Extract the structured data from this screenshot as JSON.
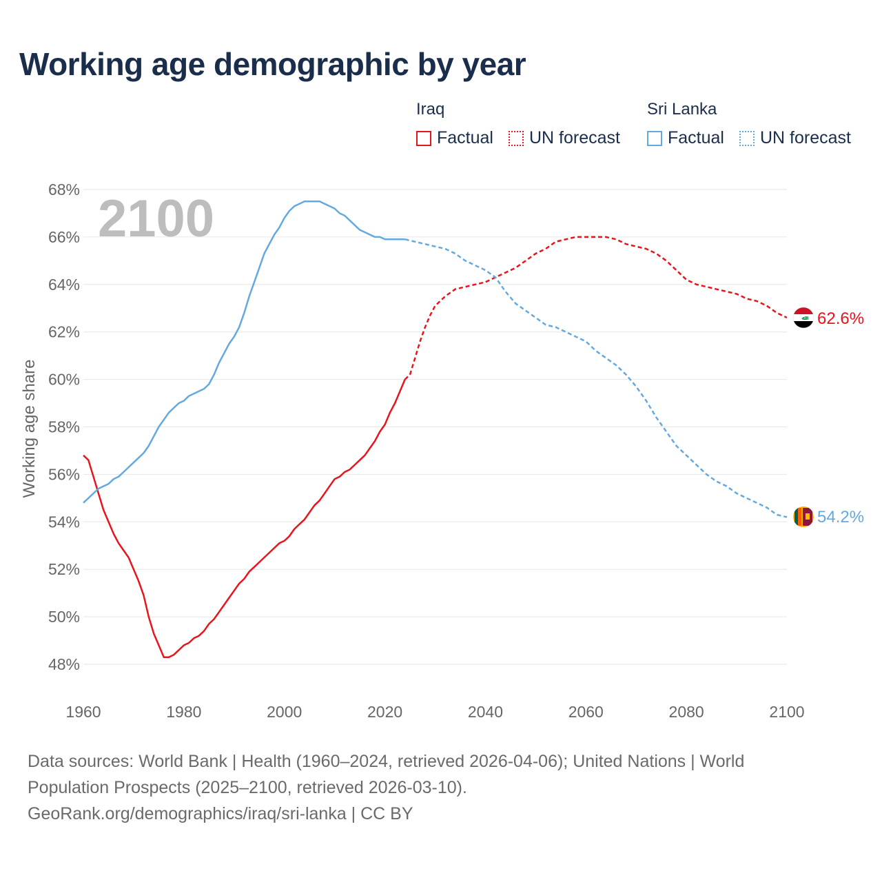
{
  "title": "Working age demographic by year",
  "legend": {
    "groups": [
      {
        "name": "Iraq",
        "factual_label": "Factual",
        "forecast_label": "UN forecast",
        "color": "#e8141b"
      },
      {
        "name": "Sri Lanka",
        "factual_label": "Factual",
        "forecast_label": "UN forecast",
        "color": "#64a8e0"
      }
    ]
  },
  "footer": {
    "line1": "Data sources: World Bank | Health (1960–2024, retrieved 2026-04-06); United Nations | World",
    "line2": "Population Prospects (2025–2100, retrieved 2026-03-10).",
    "line3": "GeoRank.org/demographics/iraq/sri-lanka | CC BY"
  },
  "chart_data": {
    "type": "line",
    "title": "Working age demographic by year",
    "ylabel": "Working age share",
    "xlabel": "",
    "year_overlay": "2100",
    "xlim": [
      1960,
      2100
    ],
    "ylim": [
      47.5,
      68
    ],
    "x_ticks": [
      "1960",
      "1980",
      "2000",
      "2020",
      "2040",
      "2060",
      "2080",
      "2100"
    ],
    "x_tick_values": [
      1960,
      1980,
      2000,
      2020,
      2040,
      2060,
      2080,
      2100
    ],
    "y_ticks": [
      "48%",
      "50%",
      "52%",
      "54%",
      "56%",
      "58%",
      "60%",
      "62%",
      "64%",
      "66%",
      "68%"
    ],
    "y_tick_values": [
      48,
      50,
      52,
      54,
      56,
      58,
      60,
      62,
      64,
      66,
      68
    ],
    "factual_end": 2024,
    "series": [
      {
        "name": "Iraq",
        "color": "#e8141b",
        "end_label": "62.6%",
        "points": [
          [
            1960,
            56.8
          ],
          [
            1961,
            56.6
          ],
          [
            1962,
            55.9
          ],
          [
            1963,
            55.2
          ],
          [
            1964,
            54.5
          ],
          [
            1965,
            54.0
          ],
          [
            1966,
            53.5
          ],
          [
            1967,
            53.1
          ],
          [
            1968,
            52.8
          ],
          [
            1969,
            52.5
          ],
          [
            1970,
            52.0
          ],
          [
            1971,
            51.5
          ],
          [
            1972,
            50.9
          ],
          [
            1973,
            50.0
          ],
          [
            1974,
            49.3
          ],
          [
            1975,
            48.8
          ],
          [
            1976,
            48.3
          ],
          [
            1977,
            48.3
          ],
          [
            1978,
            48.4
          ],
          [
            1979,
            48.6
          ],
          [
            1980,
            48.8
          ],
          [
            1981,
            48.9
          ],
          [
            1982,
            49.1
          ],
          [
            1983,
            49.2
          ],
          [
            1984,
            49.4
          ],
          [
            1985,
            49.7
          ],
          [
            1986,
            49.9
          ],
          [
            1987,
            50.2
          ],
          [
            1988,
            50.5
          ],
          [
            1989,
            50.8
          ],
          [
            1990,
            51.1
          ],
          [
            1991,
            51.4
          ],
          [
            1992,
            51.6
          ],
          [
            1993,
            51.9
          ],
          [
            1994,
            52.1
          ],
          [
            1995,
            52.3
          ],
          [
            1996,
            52.5
          ],
          [
            1997,
            52.7
          ],
          [
            1998,
            52.9
          ],
          [
            1999,
            53.1
          ],
          [
            2000,
            53.2
          ],
          [
            2001,
            53.4
          ],
          [
            2002,
            53.7
          ],
          [
            2003,
            53.9
          ],
          [
            2004,
            54.1
          ],
          [
            2005,
            54.4
          ],
          [
            2006,
            54.7
          ],
          [
            2007,
            54.9
          ],
          [
            2008,
            55.2
          ],
          [
            2009,
            55.5
          ],
          [
            2010,
            55.8
          ],
          [
            2011,
            55.9
          ],
          [
            2012,
            56.1
          ],
          [
            2013,
            56.2
          ],
          [
            2014,
            56.4
          ],
          [
            2015,
            56.6
          ],
          [
            2016,
            56.8
          ],
          [
            2017,
            57.1
          ],
          [
            2018,
            57.4
          ],
          [
            2019,
            57.8
          ],
          [
            2020,
            58.1
          ],
          [
            2021,
            58.6
          ],
          [
            2022,
            59.0
          ],
          [
            2023,
            59.5
          ],
          [
            2024,
            60.0
          ],
          [
            2025,
            60.2
          ],
          [
            2026,
            60.9
          ],
          [
            2027,
            61.6
          ],
          [
            2028,
            62.2
          ],
          [
            2029,
            62.7
          ],
          [
            2030,
            63.1
          ],
          [
            2032,
            63.5
          ],
          [
            2034,
            63.8
          ],
          [
            2036,
            63.9
          ],
          [
            2038,
            64.0
          ],
          [
            2040,
            64.1
          ],
          [
            2042,
            64.3
          ],
          [
            2044,
            64.5
          ],
          [
            2046,
            64.7
          ],
          [
            2048,
            65.0
          ],
          [
            2050,
            65.3
          ],
          [
            2052,
            65.5
          ],
          [
            2054,
            65.8
          ],
          [
            2056,
            65.9
          ],
          [
            2058,
            66.0
          ],
          [
            2060,
            66.0
          ],
          [
            2062,
            66.0
          ],
          [
            2064,
            66.0
          ],
          [
            2066,
            65.9
          ],
          [
            2068,
            65.7
          ],
          [
            2070,
            65.6
          ],
          [
            2072,
            65.5
          ],
          [
            2074,
            65.3
          ],
          [
            2076,
            65.0
          ],
          [
            2078,
            64.6
          ],
          [
            2080,
            64.2
          ],
          [
            2082,
            64.0
          ],
          [
            2084,
            63.9
          ],
          [
            2086,
            63.8
          ],
          [
            2088,
            63.7
          ],
          [
            2090,
            63.6
          ],
          [
            2092,
            63.4
          ],
          [
            2094,
            63.3
          ],
          [
            2096,
            63.1
          ],
          [
            2098,
            62.8
          ],
          [
            2100,
            62.6
          ]
        ]
      },
      {
        "name": "Sri Lanka",
        "color": "#64a8e0",
        "end_label": "54.2%",
        "points": [
          [
            1960,
            54.8
          ],
          [
            1961,
            55.0
          ],
          [
            1962,
            55.2
          ],
          [
            1963,
            55.4
          ],
          [
            1964,
            55.5
          ],
          [
            1965,
            55.6
          ],
          [
            1966,
            55.8
          ],
          [
            1967,
            55.9
          ],
          [
            1968,
            56.1
          ],
          [
            1969,
            56.3
          ],
          [
            1970,
            56.5
          ],
          [
            1971,
            56.7
          ],
          [
            1972,
            56.9
          ],
          [
            1973,
            57.2
          ],
          [
            1974,
            57.6
          ],
          [
            1975,
            58.0
          ],
          [
            1976,
            58.3
          ],
          [
            1977,
            58.6
          ],
          [
            1978,
            58.8
          ],
          [
            1979,
            59.0
          ],
          [
            1980,
            59.1
          ],
          [
            1981,
            59.3
          ],
          [
            1982,
            59.4
          ],
          [
            1983,
            59.5
          ],
          [
            1984,
            59.6
          ],
          [
            1985,
            59.8
          ],
          [
            1986,
            60.2
          ],
          [
            1987,
            60.7
          ],
          [
            1988,
            61.1
          ],
          [
            1989,
            61.5
          ],
          [
            1990,
            61.8
          ],
          [
            1991,
            62.2
          ],
          [
            1992,
            62.8
          ],
          [
            1993,
            63.5
          ],
          [
            1994,
            64.1
          ],
          [
            1995,
            64.7
          ],
          [
            1996,
            65.3
          ],
          [
            1997,
            65.7
          ],
          [
            1998,
            66.1
          ],
          [
            1999,
            66.4
          ],
          [
            2000,
            66.8
          ],
          [
            2001,
            67.1
          ],
          [
            2002,
            67.3
          ],
          [
            2003,
            67.4
          ],
          [
            2004,
            67.5
          ],
          [
            2005,
            67.5
          ],
          [
            2006,
            67.5
          ],
          [
            2007,
            67.5
          ],
          [
            2008,
            67.4
          ],
          [
            2009,
            67.3
          ],
          [
            2010,
            67.2
          ],
          [
            2011,
            67.0
          ],
          [
            2012,
            66.9
          ],
          [
            2013,
            66.7
          ],
          [
            2014,
            66.5
          ],
          [
            2015,
            66.3
          ],
          [
            2016,
            66.2
          ],
          [
            2017,
            66.1
          ],
          [
            2018,
            66.0
          ],
          [
            2019,
            66.0
          ],
          [
            2020,
            65.9
          ],
          [
            2021,
            65.9
          ],
          [
            2022,
            65.9
          ],
          [
            2023,
            65.9
          ],
          [
            2024,
            65.9
          ],
          [
            2026,
            65.8
          ],
          [
            2028,
            65.7
          ],
          [
            2030,
            65.6
          ],
          [
            2032,
            65.5
          ],
          [
            2034,
            65.3
          ],
          [
            2036,
            65.0
          ],
          [
            2038,
            64.8
          ],
          [
            2040,
            64.6
          ],
          [
            2042,
            64.3
          ],
          [
            2044,
            63.7
          ],
          [
            2046,
            63.2
          ],
          [
            2048,
            62.9
          ],
          [
            2050,
            62.6
          ],
          [
            2052,
            62.3
          ],
          [
            2054,
            62.2
          ],
          [
            2056,
            62.0
          ],
          [
            2058,
            61.8
          ],
          [
            2060,
            61.6
          ],
          [
            2062,
            61.2
          ],
          [
            2064,
            60.9
          ],
          [
            2066,
            60.6
          ],
          [
            2068,
            60.2
          ],
          [
            2070,
            59.7
          ],
          [
            2072,
            59.1
          ],
          [
            2074,
            58.4
          ],
          [
            2076,
            57.8
          ],
          [
            2078,
            57.2
          ],
          [
            2080,
            56.8
          ],
          [
            2082,
            56.4
          ],
          [
            2084,
            56.0
          ],
          [
            2086,
            55.7
          ],
          [
            2088,
            55.5
          ],
          [
            2090,
            55.2
          ],
          [
            2092,
            55.0
          ],
          [
            2094,
            54.8
          ],
          [
            2096,
            54.6
          ],
          [
            2098,
            54.3
          ],
          [
            2100,
            54.2
          ]
        ]
      }
    ]
  }
}
